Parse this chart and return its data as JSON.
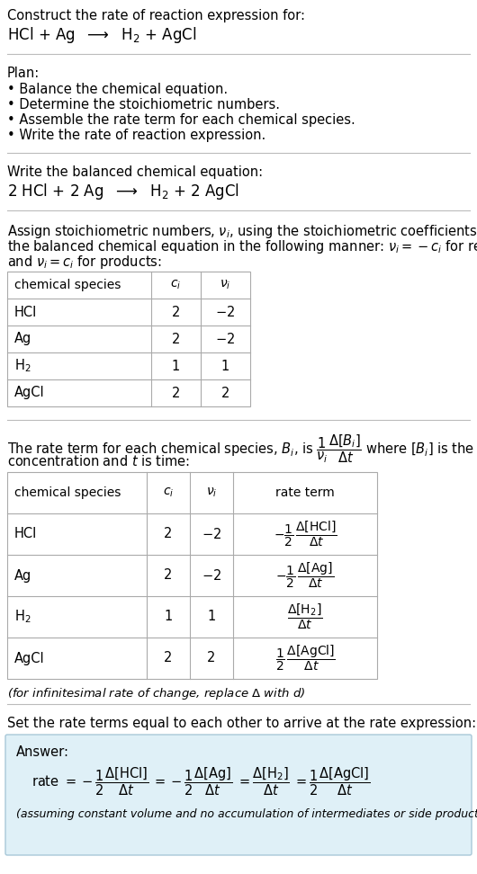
{
  "bg_color": "#ffffff",
  "answer_bg_color": "#dff0f7",
  "answer_border_color": "#a8c8d8",
  "text_color": "#000000",
  "title_text": "Construct the rate of reaction expression for:",
  "plan_header": "Plan:",
  "plan_items": [
    "• Balance the chemical equation.",
    "• Determine the stoichiometric numbers.",
    "• Assemble the rate term for each chemical species.",
    "• Write the rate of reaction expression."
  ],
  "balanced_header": "Write the balanced chemical equation:",
  "set_equal_text": "Set the rate terms equal to each other to arrive at the rate expression:",
  "answer_label": "Answer:",
  "answer_note": "(assuming constant volume and no accumulation of intermediates or side products)"
}
